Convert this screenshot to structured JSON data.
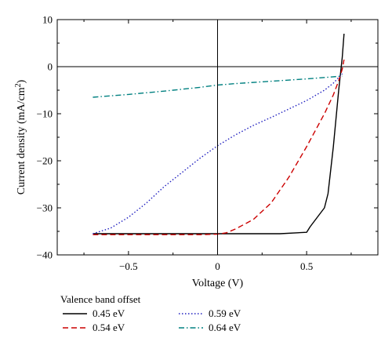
{
  "chart_data": {
    "type": "line",
    "title": "",
    "xlabel": "Voltage (V)",
    "ylabel_main": "Current density (mA/cm",
    "ylabel_sup": "2",
    "ylabel_end": ")",
    "xlim": [
      -0.9,
      0.9
    ],
    "ylim": [
      -40,
      10
    ],
    "xticks": [
      -0.5,
      0,
      0.5
    ],
    "xtick_labels": [
      "−0.5",
      "0",
      "0.5"
    ],
    "yticks": [
      10,
      0,
      -10,
      -20,
      -30,
      -40
    ],
    "ytick_labels": [
      "10",
      "0",
      "−10",
      "−20",
      "−30",
      "−40"
    ],
    "grid": false,
    "zero_lines": true,
    "legend_title": "Valence band offset",
    "legend_placement": "bottom",
    "series": [
      {
        "name": "0.45 eV",
        "color": "#000000",
        "dash": "solid",
        "x": [
          -0.7,
          -0.3,
          0.0,
          0.35,
          0.5,
          0.52,
          0.56,
          0.6,
          0.62,
          0.65,
          0.68,
          0.7,
          0.71
        ],
        "y": [
          -35.5,
          -35.5,
          -35.5,
          -35.5,
          -35.2,
          -34.0,
          -32.0,
          -30.0,
          -27.0,
          -17.0,
          -5.0,
          2.0,
          7.0
        ]
      },
      {
        "name": "0.54 eV",
        "color": "#cc0000",
        "dash": "dashed",
        "x": [
          -0.7,
          -0.4,
          -0.1,
          0.0,
          0.05,
          0.1,
          0.2,
          0.3,
          0.4,
          0.5,
          0.6,
          0.65,
          0.68,
          0.7,
          0.71
        ],
        "y": [
          -35.7,
          -35.7,
          -35.7,
          -35.6,
          -35.3,
          -34.5,
          -32.5,
          -29.0,
          -23.5,
          -17.0,
          -10.0,
          -6.0,
          -3.0,
          -0.5,
          1.5
        ]
      },
      {
        "name": "0.59 eV",
        "color": "#2020c0",
        "dash": "dotted",
        "x": [
          -0.7,
          -0.6,
          -0.5,
          -0.4,
          -0.3,
          -0.2,
          -0.1,
          0.0,
          0.1,
          0.2,
          0.3,
          0.4,
          0.5,
          0.6,
          0.65,
          0.7
        ],
        "y": [
          -35.5,
          -34.3,
          -32.0,
          -29.0,
          -25.5,
          -22.5,
          -19.5,
          -16.8,
          -14.5,
          -12.5,
          -10.8,
          -9.0,
          -7.2,
          -5.0,
          -3.5,
          -1.5
        ]
      },
      {
        "name": "0.64 eV",
        "color": "#008080",
        "dash": "dashdot",
        "x": [
          -0.7,
          -0.5,
          -0.3,
          -0.1,
          0.0,
          0.1,
          0.3,
          0.5,
          0.6,
          0.7
        ],
        "y": [
          -6.5,
          -5.9,
          -5.2,
          -4.4,
          -3.9,
          -3.6,
          -3.1,
          -2.6,
          -2.3,
          -2.0
        ]
      }
    ]
  }
}
